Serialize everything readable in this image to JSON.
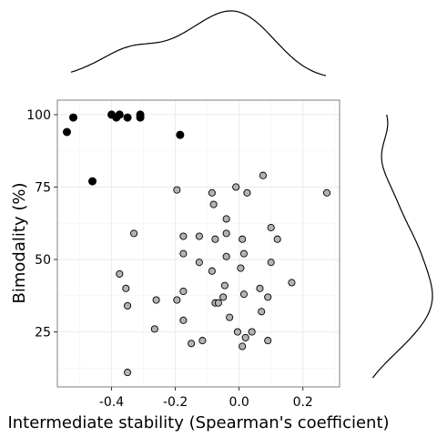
{
  "chart_data": {
    "type": "scatter",
    "xlabel": "Intermediate stability (Spearman's coefficient)",
    "ylabel": "Bimodality (%)",
    "xlim": [
      -0.57,
      0.315
    ],
    "ylim": [
      6,
      105
    ],
    "x_ticks": [
      -0.4,
      -0.2,
      0.0,
      0.2
    ],
    "x_tick_labels": [
      "-0.4",
      "-0.2",
      "0.0",
      "0.2"
    ],
    "y_ticks": [
      25,
      50,
      75,
      100
    ],
    "y_tick_labels": [
      "25",
      "50",
      "75",
      "100"
    ],
    "grid": true,
    "marginal_plots": [
      "top: density of x",
      "right: density of y"
    ],
    "series": [
      {
        "color": "#000000",
        "points": [
          [
            -0.54,
            94
          ],
          [
            -0.52,
            99
          ],
          [
            -0.46,
            77
          ],
          [
            -0.4,
            100
          ],
          [
            -0.385,
            99
          ],
          [
            -0.375,
            100
          ],
          [
            -0.35,
            99
          ],
          [
            -0.31,
            100
          ],
          [
            -0.31,
            99
          ],
          [
            -0.185,
            93
          ]
        ]
      },
      {
        "color": "#b3b3b3",
        "points": [
          [
            -0.35,
            11
          ],
          [
            -0.33,
            59
          ],
          [
            -0.375,
            45
          ],
          [
            -0.355,
            40
          ],
          [
            -0.35,
            34
          ],
          [
            -0.26,
            36
          ],
          [
            -0.265,
            26
          ],
          [
            -0.195,
            74
          ],
          [
            -0.195,
            36
          ],
          [
            -0.175,
            58
          ],
          [
            -0.175,
            52
          ],
          [
            -0.175,
            39
          ],
          [
            -0.175,
            29
          ],
          [
            -0.15,
            21
          ],
          [
            -0.125,
            58
          ],
          [
            -0.125,
            49
          ],
          [
            -0.115,
            22
          ],
          [
            -0.085,
            73
          ],
          [
            -0.08,
            69
          ],
          [
            -0.085,
            46
          ],
          [
            -0.075,
            57
          ],
          [
            -0.075,
            35
          ],
          [
            -0.065,
            35
          ],
          [
            -0.05,
            37
          ],
          [
            -0.045,
            41
          ],
          [
            -0.04,
            64
          ],
          [
            -0.04,
            59
          ],
          [
            -0.04,
            51
          ],
          [
            -0.03,
            30
          ],
          [
            -0.01,
            75
          ],
          [
            -0.005,
            25
          ],
          [
            0.005,
            47
          ],
          [
            0.01,
            57
          ],
          [
            0.015,
            52
          ],
          [
            0.01,
            20
          ],
          [
            0.015,
            38
          ],
          [
            0.02,
            23
          ],
          [
            0.025,
            73
          ],
          [
            0.04,
            25
          ],
          [
            0.065,
            40
          ],
          [
            0.07,
            32
          ],
          [
            0.075,
            79
          ],
          [
            0.09,
            37
          ],
          [
            0.09,
            22
          ],
          [
            0.1,
            61
          ],
          [
            0.1,
            49
          ],
          [
            0.12,
            57
          ],
          [
            0.165,
            42
          ],
          [
            0.275,
            73
          ]
        ]
      }
    ]
  }
}
